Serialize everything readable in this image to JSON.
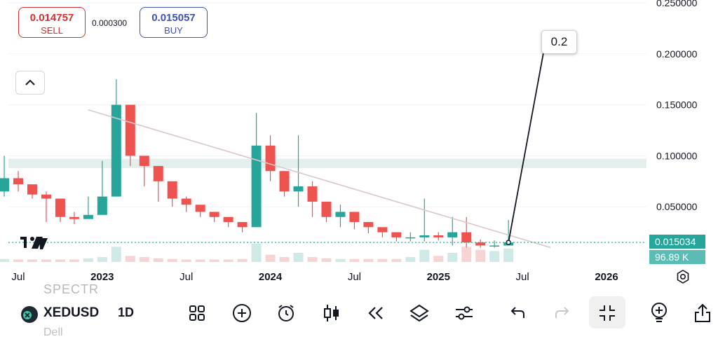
{
  "trade": {
    "sell_price": "0.014757",
    "sell_label": "SELL",
    "buy_price": "0.015057",
    "buy_label": "BUY",
    "spread": "0.000300"
  },
  "symbol_bar": {
    "symbol": "XEDUSD",
    "interval": "1D",
    "faded_top": "SPECTR",
    "faded_bottom": "Dell"
  },
  "price_tags": {
    "last_price": "0.015034",
    "volume": "96.89 K"
  },
  "callout_label": "0.2",
  "colors": {
    "up": "#26a69a",
    "down": "#ef5350",
    "sell": "#d32f2f",
    "buy": "#3f51b5",
    "trendline": "#d9c7cc",
    "zone": "#e3efec"
  },
  "icons": [
    "collapse-chevron-up-icon",
    "tradingview-logo-icon",
    "coin-icon",
    "indicators-grid-icon",
    "add-plus-icon",
    "alarm-clock-icon",
    "candlestick-icon",
    "replay-rewind-icon",
    "layers-icon",
    "settings-sliders-icon",
    "undo-icon",
    "redo-icon",
    "fullscreen-exit-icon",
    "add-idea-bulb-icon",
    "share-icon",
    "gear-icon"
  ],
  "chart_data": {
    "type": "candlestick",
    "x_ticks": [
      "Jul",
      "2023",
      "Jul",
      "2024",
      "Jul",
      "2025",
      "Jul",
      "2026"
    ],
    "y_ticks": [
      "0.250000",
      "0.200000",
      "0.150000",
      "0.100000",
      "0.050000"
    ],
    "ylim": [
      0,
      0.25
    ],
    "x": [
      "2022-05",
      "2022-06",
      "2022-07",
      "2022-08",
      "2022-09",
      "2022-10",
      "2022-11",
      "2022-12",
      "2023-01",
      "2023-02",
      "2023-03",
      "2023-04",
      "2023-05",
      "2023-06",
      "2023-07",
      "2023-08",
      "2023-09",
      "2023-10",
      "2023-11",
      "2023-12",
      "2024-01",
      "2024-02",
      "2024-03",
      "2024-04",
      "2024-05",
      "2024-06",
      "2024-07",
      "2024-08",
      "2024-09",
      "2024-10",
      "2024-11",
      "2024-12",
      "2025-01",
      "2025-02",
      "2025-03",
      "2025-04",
      "2025-05",
      "2025-06"
    ],
    "close": [
      0.065,
      0.078,
      0.072,
      0.062,
      0.058,
      0.04,
      0.038,
      0.042,
      0.06,
      0.15,
      0.1,
      0.09,
      0.075,
      0.058,
      0.052,
      0.045,
      0.04,
      0.035,
      0.03,
      0.11,
      0.085,
      0.065,
      0.07,
      0.055,
      0.04,
      0.045,
      0.035,
      0.03,
      0.025,
      0.02,
      0.02,
      0.022,
      0.02,
      0.025,
      0.015,
      0.012,
      0.012,
      0.015
    ],
    "high": [
      0.075,
      0.1,
      0.085,
      0.07,
      0.065,
      0.05,
      0.045,
      0.06,
      0.095,
      0.175,
      0.12,
      0.1,
      0.085,
      0.065,
      0.06,
      0.05,
      0.045,
      0.04,
      0.035,
      0.142,
      0.12,
      0.085,
      0.12,
      0.075,
      0.05,
      0.052,
      0.04,
      0.035,
      0.03,
      0.025,
      0.025,
      0.058,
      0.025,
      0.04,
      0.04,
      0.018,
      0.017,
      0.037
    ],
    "low": [
      0.045,
      0.06,
      0.065,
      0.058,
      0.035,
      0.035,
      0.033,
      0.038,
      0.045,
      0.09,
      0.09,
      0.07,
      0.055,
      0.05,
      0.045,
      0.04,
      0.035,
      0.03,
      0.025,
      0.03,
      0.075,
      0.06,
      0.05,
      0.04,
      0.035,
      0.03,
      0.028,
      0.024,
      0.02,
      0.016,
      0.016,
      0.016,
      0.017,
      0.012,
      0.01,
      0.01,
      0.01,
      0.012
    ],
    "volume": [
      5,
      5,
      4,
      4,
      4,
      4,
      4,
      6,
      8,
      25,
      10,
      8,
      6,
      5,
      4,
      4,
      4,
      4,
      5,
      30,
      12,
      8,
      15,
      8,
      6,
      5,
      5,
      5,
      5,
      5,
      8,
      20,
      10,
      15,
      25,
      20,
      18,
      22
    ],
    "lines": [
      {
        "name": "",
        "type": "trendline",
        "from": [
          "2022-12",
          0.145
        ],
        "to": [
          "2025-09",
          0.01
        ]
      },
      {
        "name": "",
        "type": "projection",
        "from": [
          "2025-06",
          0.015
        ],
        "to": [
          "2025-07",
          0.2
        ]
      }
    ],
    "zone": [
      0.088,
      0.097
    ],
    "last_price_line": 0.015034
  }
}
